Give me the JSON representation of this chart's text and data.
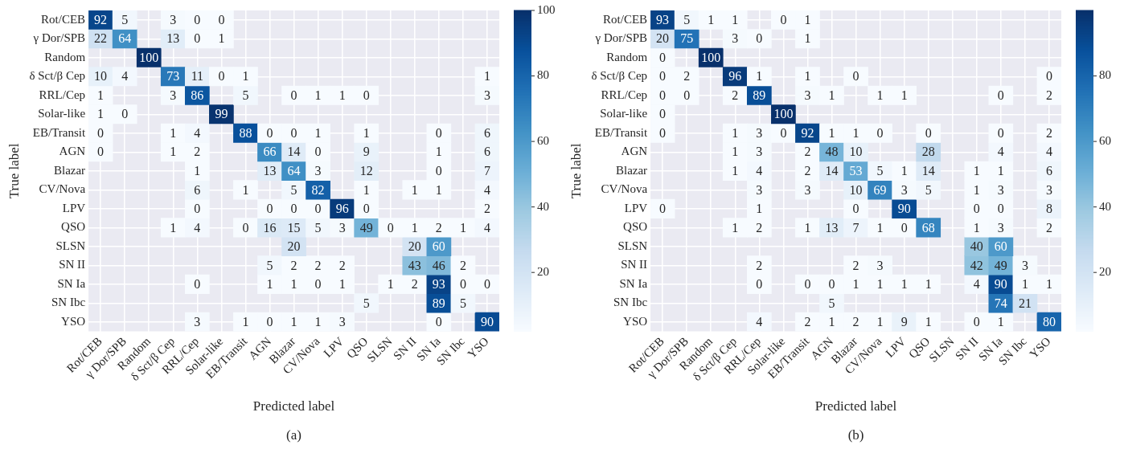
{
  "chart_data": [
    {
      "type": "heatmap",
      "xlabel": "Predicted label",
      "ylabel": "True label",
      "annotations": [
        "(a)"
      ],
      "grid": true,
      "data_labels": true,
      "clim": [
        2,
        100
      ],
      "cticks": [
        20,
        40,
        60,
        80,
        100
      ],
      "categories": [
        "Rot/CEB",
        "γ Dor/SPB",
        "Random",
        "δ Sct/β Cep",
        "RRL/Cep",
        "Solar-like",
        "EB/Transit",
        "AGN",
        "Blazar",
        "CV/Nova",
        "LPV",
        "QSO",
        "SLSN",
        "SN II",
        "SN Ia",
        "SN Ibc",
        "YSO"
      ],
      "y_categories": [
        "Rot/CEB",
        "γ Dor/SPB",
        "Random",
        "δ Sct/β Cep",
        "RRL/Cep",
        "Solar-like",
        "EB/Transit",
        "AGN",
        "Blazar",
        "CV/Nova",
        "LPV",
        "QSO",
        "SLSN",
        "SN II",
        "SN Ia",
        "SN Ibc",
        "YSO"
      ],
      "cells": [
        [
          92,
          5,
          null,
          3,
          0,
          0,
          null,
          null,
          null,
          null,
          null,
          null,
          null,
          null,
          null,
          null,
          null
        ],
        [
          22,
          64,
          null,
          13,
          0,
          1,
          null,
          null,
          null,
          null,
          null,
          null,
          null,
          null,
          null,
          null,
          null
        ],
        [
          null,
          null,
          100,
          null,
          null,
          null,
          null,
          null,
          null,
          null,
          null,
          null,
          null,
          null,
          null,
          null,
          null
        ],
        [
          10,
          4,
          null,
          73,
          11,
          0,
          1,
          null,
          null,
          null,
          null,
          null,
          null,
          null,
          null,
          null,
          1
        ],
        [
          1,
          null,
          null,
          3,
          86,
          null,
          5,
          null,
          0,
          1,
          1,
          0,
          null,
          null,
          null,
          null,
          3
        ],
        [
          1,
          0,
          null,
          null,
          null,
          99,
          null,
          null,
          null,
          null,
          null,
          null,
          null,
          null,
          null,
          null,
          null
        ],
        [
          0,
          null,
          null,
          1,
          4,
          null,
          88,
          0,
          0,
          1,
          null,
          1,
          null,
          null,
          0,
          null,
          6
        ],
        [
          0,
          null,
          null,
          1,
          2,
          null,
          null,
          66,
          14,
          0,
          null,
          9,
          null,
          null,
          1,
          null,
          6
        ],
        [
          null,
          null,
          null,
          null,
          1,
          null,
          null,
          13,
          64,
          3,
          null,
          12,
          null,
          null,
          0,
          null,
          7
        ],
        [
          null,
          null,
          null,
          null,
          6,
          null,
          1,
          null,
          5,
          82,
          null,
          1,
          null,
          1,
          1,
          null,
          4
        ],
        [
          null,
          null,
          null,
          null,
          0,
          null,
          null,
          0,
          0,
          0,
          96,
          0,
          null,
          null,
          null,
          null,
          2
        ],
        [
          null,
          null,
          null,
          1,
          4,
          null,
          0,
          16,
          15,
          5,
          3,
          49,
          0,
          1,
          2,
          1,
          4
        ],
        [
          null,
          null,
          null,
          null,
          null,
          null,
          null,
          null,
          20,
          null,
          null,
          null,
          null,
          20,
          60,
          null,
          null
        ],
        [
          null,
          null,
          null,
          null,
          null,
          null,
          null,
          5,
          2,
          2,
          2,
          null,
          null,
          43,
          46,
          2,
          null
        ],
        [
          null,
          null,
          null,
          null,
          0,
          null,
          null,
          1,
          1,
          0,
          1,
          null,
          1,
          2,
          93,
          0,
          0
        ],
        [
          null,
          null,
          null,
          null,
          null,
          null,
          null,
          null,
          null,
          null,
          null,
          5,
          null,
          null,
          89,
          5,
          null
        ],
        [
          null,
          null,
          null,
          null,
          3,
          null,
          1,
          0,
          1,
          1,
          3,
          null,
          null,
          null,
          0,
          null,
          90
        ]
      ]
    },
    {
      "type": "heatmap",
      "xlabel": "Predicted label",
      "ylabel": "True label",
      "annotations": [
        "(b)"
      ],
      "grid": true,
      "data_labels": true,
      "clim": [
        2,
        100
      ],
      "cticks": [
        20,
        40,
        60,
        80
      ],
      "categories": [
        "Rot/CEB",
        "γ Dor/SPB",
        "Random",
        "δ Sct/β Cep",
        "RRL/Cep",
        "Solar-like",
        "EB/Transit",
        "AGN",
        "Blazar",
        "CV/Nova",
        "LPV",
        "QSO",
        "SLSN",
        "SN II",
        "SN Ia",
        "SN Ibc",
        "YSO"
      ],
      "y_categories": [
        "Rot/CEB",
        "γ Dor/SPB",
        "Random",
        "δ Sct/β Cep",
        "RRL/Cep",
        "Solar-like",
        "EB/Transit",
        "AGN",
        "Blazar",
        "CV/Nova",
        "LPV",
        "QSO",
        "SLSN",
        "SN II",
        "SN Ia",
        "SN Ibc",
        "YSO"
      ],
      "cells": [
        [
          93,
          5,
          1,
          1,
          null,
          0,
          1,
          null,
          null,
          null,
          null,
          null,
          null,
          null,
          null,
          null,
          null
        ],
        [
          20,
          75,
          null,
          3,
          0,
          null,
          1,
          null,
          null,
          null,
          null,
          null,
          null,
          null,
          null,
          null,
          null
        ],
        [
          0,
          null,
          100,
          null,
          null,
          null,
          null,
          null,
          null,
          null,
          null,
          null,
          null,
          null,
          null,
          null,
          null
        ],
        [
          0,
          2,
          null,
          96,
          1,
          null,
          1,
          null,
          0,
          null,
          null,
          null,
          null,
          null,
          null,
          null,
          0
        ],
        [
          0,
          0,
          null,
          2,
          89,
          null,
          3,
          1,
          null,
          1,
          1,
          null,
          null,
          null,
          0,
          null,
          2
        ],
        [
          0,
          null,
          null,
          null,
          null,
          100,
          null,
          null,
          null,
          null,
          null,
          null,
          null,
          null,
          null,
          null,
          null
        ],
        [
          0,
          null,
          null,
          1,
          3,
          0,
          92,
          1,
          1,
          0,
          null,
          0,
          null,
          null,
          0,
          null,
          2
        ],
        [
          null,
          null,
          null,
          1,
          3,
          null,
          2,
          48,
          10,
          null,
          null,
          28,
          null,
          null,
          4,
          null,
          4
        ],
        [
          null,
          null,
          null,
          1,
          4,
          null,
          2,
          14,
          53,
          5,
          1,
          14,
          null,
          1,
          1,
          null,
          6
        ],
        [
          null,
          null,
          null,
          null,
          3,
          null,
          3,
          null,
          10,
          69,
          3,
          5,
          null,
          1,
          3,
          null,
          3
        ],
        [
          0,
          null,
          null,
          null,
          1,
          null,
          null,
          null,
          0,
          null,
          90,
          null,
          null,
          0,
          0,
          null,
          8
        ],
        [
          null,
          null,
          null,
          1,
          2,
          null,
          1,
          13,
          7,
          1,
          0,
          68,
          null,
          1,
          3,
          null,
          2
        ],
        [
          null,
          null,
          null,
          null,
          null,
          null,
          null,
          null,
          null,
          null,
          null,
          null,
          null,
          40,
          60,
          null,
          null
        ],
        [
          null,
          null,
          null,
          null,
          2,
          null,
          null,
          null,
          2,
          3,
          null,
          null,
          null,
          42,
          49,
          3,
          null
        ],
        [
          null,
          null,
          null,
          null,
          0,
          null,
          0,
          0,
          1,
          1,
          1,
          1,
          null,
          4,
          90,
          1,
          1
        ],
        [
          null,
          null,
          null,
          null,
          null,
          null,
          null,
          5,
          null,
          null,
          null,
          null,
          null,
          null,
          74,
          21,
          null
        ],
        [
          null,
          null,
          null,
          null,
          4,
          null,
          2,
          1,
          2,
          1,
          9,
          1,
          null,
          0,
          1,
          null,
          80
        ]
      ]
    }
  ]
}
